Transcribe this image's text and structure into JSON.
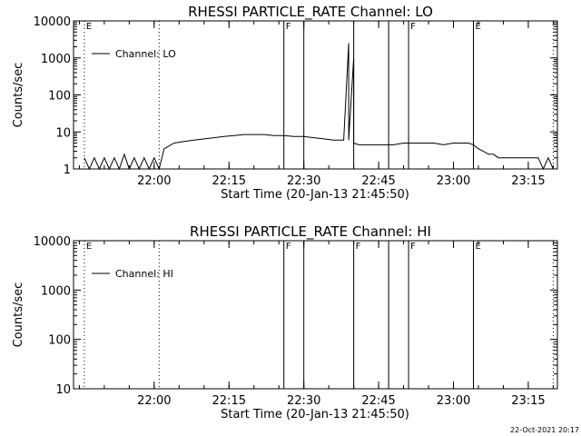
{
  "chart_data": [
    {
      "type": "line",
      "title": "RHESSI PARTICLE_RATE Channel: LO",
      "xlabel": "Start Time (20-Jan-13 21:45:50)",
      "ylabel": "Counts/sec",
      "y_scale": "log",
      "ylim": [
        1,
        10000
      ],
      "xlim_minutes": [
        -2,
        95
      ],
      "x_ticks": [
        "22:00",
        "22:15",
        "22:30",
        "22:45",
        "23:00",
        "23:15"
      ],
      "y_ticks": [
        "10000",
        "1000",
        "100",
        "10",
        "1"
      ],
      "legend": {
        "entries": [
          "Channel: LO"
        ],
        "placement": "top-left"
      },
      "markers": [
        {
          "label": "E",
          "t": "21:46",
          "style": "dotted"
        },
        {
          "label": "",
          "t": "22:01",
          "style": "dotted"
        },
        {
          "label": "F",
          "t": "22:26",
          "style": "solid"
        },
        {
          "label": "",
          "t": "22:30",
          "style": "solid"
        },
        {
          "label": "",
          "t": "22:40",
          "style": "solid"
        },
        {
          "label": "",
          "t": "22:47",
          "style": "solid"
        },
        {
          "label": "F",
          "t": "22:51",
          "style": "solid"
        },
        {
          "label": "",
          "t": "23:04",
          "style": "solid"
        },
        {
          "label": "E",
          "t": "23:04",
          "style": "dotted"
        },
        {
          "label": "",
          "t": "23:20",
          "style": "dotted"
        }
      ],
      "series": [
        {
          "name": "Channel: LO",
          "x": [
            "21:46",
            "21:47",
            "21:48",
            "21:49",
            "21:50",
            "21:51",
            "21:52",
            "21:53",
            "21:54",
            "21:55",
            "21:56",
            "21:57",
            "21:58",
            "21:59",
            "22:00",
            "22:01",
            "22:02",
            "22:04",
            "22:06",
            "22:08",
            "22:10",
            "22:12",
            "22:14",
            "22:16",
            "22:18",
            "22:20",
            "22:22",
            "22:24",
            "22:26",
            "22:28",
            "22:30",
            "22:32",
            "22:34",
            "22:36",
            "22:38",
            "22:39",
            "22:39",
            "22:40",
            "22:40",
            "22:41",
            "22:42",
            "22:44",
            "22:46",
            "22:48",
            "22:50",
            "22:52",
            "22:54",
            "22:56",
            "22:58",
            "23:00",
            "23:02",
            "23:03",
            "23:04",
            "23:05",
            "23:06",
            "23:07",
            "23:08",
            "23:09",
            "23:10",
            "23:12",
            "23:14",
            "23:16",
            "23:17",
            "23:18",
            "23:19",
            "23:20"
          ],
          "y": [
            2,
            1,
            2,
            1,
            2,
            1,
            2,
            1,
            2.5,
            1,
            2,
            1,
            2,
            1,
            2,
            1,
            3.5,
            5,
            5.5,
            6,
            6.5,
            7,
            7.5,
            8,
            8.5,
            8.5,
            8.5,
            8,
            8,
            7.5,
            7.5,
            7,
            6.5,
            6,
            6,
            2500,
            6,
            1000,
            5,
            4.5,
            4.5,
            4.5,
            4.5,
            4.5,
            5,
            5,
            5,
            5,
            4.5,
            5,
            5,
            5,
            4.5,
            3.5,
            3,
            2.5,
            2.5,
            2,
            2,
            2,
            2,
            2,
            2,
            1,
            2,
            1
          ]
        }
      ]
    },
    {
      "type": "line",
      "title": "RHESSI PARTICLE_RATE Channel: HI",
      "xlabel": "Start Time (20-Jan-13 21:45:50)",
      "ylabel": "Counts/sec",
      "y_scale": "log",
      "ylim": [
        10,
        10000
      ],
      "xlim_minutes": [
        -2,
        95
      ],
      "x_ticks": [
        "22:00",
        "22:15",
        "22:30",
        "22:45",
        "23:00",
        "23:15"
      ],
      "y_ticks": [
        "10000",
        "1000",
        "100",
        "10"
      ],
      "legend": {
        "entries": [
          "Channel: HI"
        ],
        "placement": "top-left"
      },
      "markers": [
        {
          "label": "E",
          "t": "21:46",
          "style": "dotted"
        },
        {
          "label": "",
          "t": "22:01",
          "style": "dotted"
        },
        {
          "label": "F",
          "t": "22:26",
          "style": "solid"
        },
        {
          "label": "",
          "t": "22:30",
          "style": "solid"
        },
        {
          "label": "F",
          "t": "22:40",
          "style": "solid"
        },
        {
          "label": "",
          "t": "22:47",
          "style": "solid"
        },
        {
          "label": "F",
          "t": "22:51",
          "style": "solid"
        },
        {
          "label": "",
          "t": "23:04",
          "style": "solid"
        },
        {
          "label": "E",
          "t": "23:04",
          "style": "dotted"
        },
        {
          "label": "",
          "t": "23:20",
          "style": "dotted"
        }
      ],
      "series": [
        {
          "name": "Channel: HI",
          "x": [],
          "y": []
        }
      ]
    }
  ],
  "footer": {
    "timestamp": "22-Oct-2021 20:17"
  }
}
